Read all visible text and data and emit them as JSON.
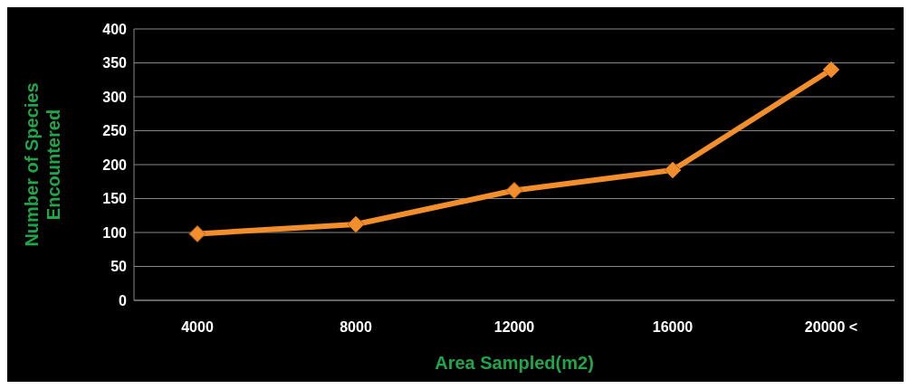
{
  "chart_data": {
    "type": "line",
    "xlabel": "Area Sampled(m2)",
    "ylabel": "Number of Species\nEncountered",
    "categories": [
      "4000",
      "8000",
      "12000",
      "16000",
      "20000 <"
    ],
    "series": [
      {
        "color": "#f28e2b",
        "values": [
          98,
          112,
          162,
          192,
          340
        ]
      }
    ],
    "ylim": [
      0,
      400
    ],
    "yticks": [
      0,
      50,
      100,
      150,
      200,
      250,
      300,
      350,
      400
    ],
    "grid": "y",
    "marker": "diamond",
    "legend": false
  }
}
